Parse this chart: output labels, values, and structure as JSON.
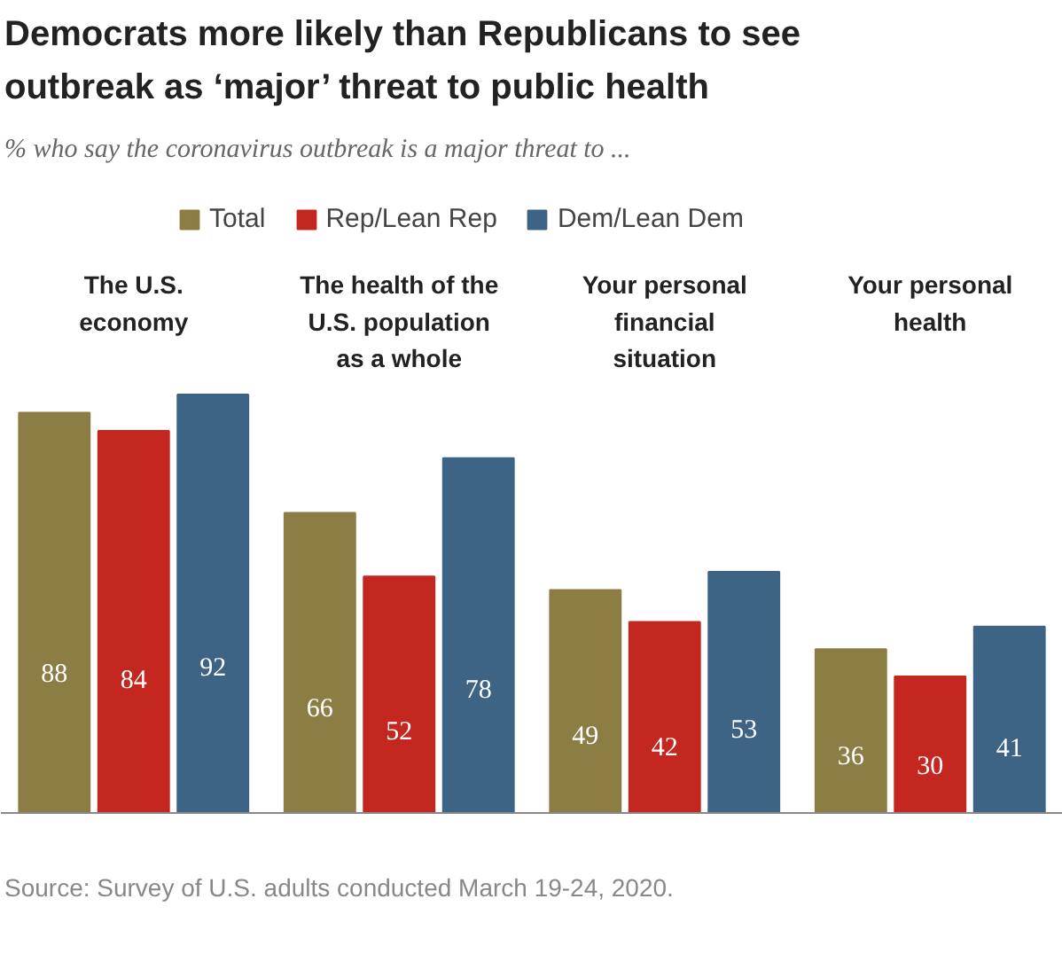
{
  "chart_data": {
    "type": "bar",
    "title": "Democrats more likely than Republicans to see outbreak as ‘major’ threat to public health",
    "subtitle": "% who say the coronavirus outbreak is a major threat to ...",
    "categories": [
      "The U.S.\neconomy",
      "The health of the\nU.S. population\nas a whole",
      "Your personal\nfinancial\nsituation",
      "Your personal\nhealth"
    ],
    "series": [
      {
        "name": "Total",
        "color": "#8c7d45",
        "values": [
          88,
          66,
          49,
          36
        ]
      },
      {
        "name": "Rep/Lean Rep",
        "color": "#c4271f",
        "values": [
          84,
          52,
          42,
          30
        ]
      },
      {
        "name": "Dem/Lean Dem",
        "color": "#3d6385",
        "values": [
          92,
          78,
          53,
          41
        ]
      }
    ],
    "data_labels": true,
    "legend": "top",
    "annotations": [
      "Source: Survey of U.S. adults conducted March 19-24, 2020."
    ]
  }
}
